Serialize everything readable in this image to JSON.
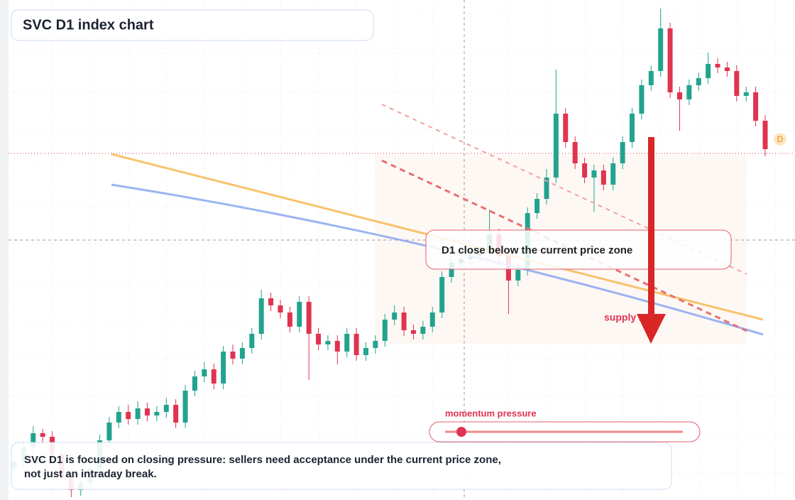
{
  "chart_data": {
    "type": "candlestick",
    "title": "SVC D1 index chart",
    "open": [
      44,
      54,
      74,
      94,
      89,
      64,
      34,
      14,
      24,
      44,
      84,
      109,
      124,
      114,
      129,
      119,
      124,
      134,
      109,
      154,
      174,
      184,
      164,
      209,
      199,
      214,
      234,
      284,
      274,
      264,
      244,
      279,
      234,
      219,
      224,
      209,
      234,
      204,
      214,
      224,
      254,
      264,
      239,
      234,
      244,
      264,
      314,
      334,
      339,
      344,
      349,
      374,
      344,
      309,
      324,
      404,
      424,
      454,
      544,
      504,
      474,
      454,
      464,
      444,
      474,
      504,
      544,
      584,
      604,
      664,
      574,
      564,
      584,
      594,
      614,
      609,
      604,
      569,
      574,
      534
    ],
    "high": [
      62,
      82,
      104,
      100,
      97,
      72,
      42,
      32,
      52,
      92,
      117,
      132,
      134,
      139,
      137,
      132,
      144,
      142,
      162,
      182,
      194,
      192,
      217,
      219,
      222,
      242,
      296,
      292,
      282,
      272,
      287,
      287,
      242,
      232,
      232,
      242,
      242,
      222,
      232,
      262,
      274,
      272,
      247,
      252,
      272,
      322,
      344,
      349,
      352,
      359,
      409,
      382,
      352,
      332,
      412,
      432,
      466,
      606,
      552,
      512,
      482,
      472,
      472,
      482,
      512,
      552,
      592,
      612,
      692,
      672,
      582,
      592,
      602,
      630,
      622,
      617,
      612,
      582,
      582,
      542
    ],
    "low": [
      36,
      46,
      66,
      81,
      56,
      26,
      4,
      6,
      16,
      36,
      76,
      101,
      106,
      106,
      111,
      111,
      116,
      101,
      101,
      146,
      166,
      156,
      156,
      191,
      191,
      206,
      226,
      266,
      256,
      236,
      236,
      169,
      211,
      211,
      191,
      201,
      196,
      196,
      206,
      216,
      246,
      231,
      226,
      226,
      236,
      256,
      306,
      326,
      331,
      336,
      341,
      336,
      262,
      301,
      316,
      396,
      416,
      446,
      496,
      466,
      446,
      406,
      436,
      436,
      466,
      496,
      536,
      576,
      596,
      566,
      520,
      556,
      576,
      586,
      601,
      596,
      561,
      561,
      526,
      484
    ],
    "close": [
      54,
      74,
      94,
      89,
      64,
      34,
      14,
      24,
      44,
      84,
      109,
      124,
      114,
      129,
      119,
      124,
      134,
      109,
      154,
      174,
      184,
      164,
      209,
      199,
      214,
      234,
      284,
      274,
      264,
      244,
      279,
      234,
      219,
      224,
      209,
      234,
      204,
      214,
      224,
      254,
      264,
      239,
      234,
      244,
      264,
      314,
      334,
      339,
      344,
      349,
      374,
      344,
      309,
      324,
      404,
      424,
      454,
      544,
      504,
      474,
      454,
      464,
      444,
      474,
      504,
      544,
      584,
      604,
      664,
      574,
      564,
      584,
      594,
      614,
      609,
      604,
      569,
      574,
      534,
      494
    ],
    "ylim": [
      0,
      704
    ],
    "up_color": "#22a38e",
    "down_color": "#e0334f",
    "annotations": {
      "zone_note": "D1 close below the current price zone",
      "zone_label": "supply zone",
      "momentum_label": "momentum pressure",
      "badge": "D",
      "footer": [
        "SVC D1 is focused on closing pressure: sellers need acceptance under the current price zone,",
        "not just an intraday break."
      ]
    }
  }
}
